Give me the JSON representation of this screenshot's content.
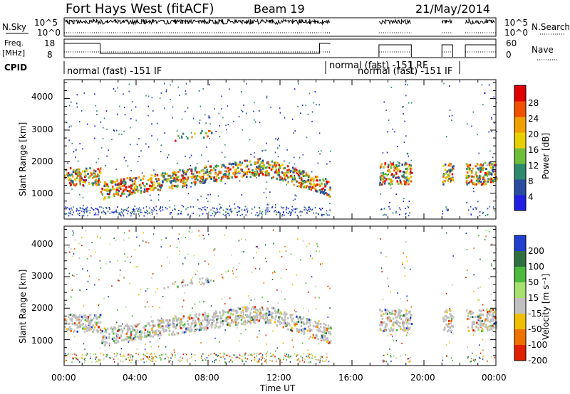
{
  "header": {
    "title": "Fort Hays West (fitACF)",
    "beam": "Beam 19",
    "date": "21/May/2014"
  },
  "panels": {
    "nsky": {
      "label": "N.Sky",
      "ticks": [
        "10^5",
        "10^0"
      ],
      "right_label": "N.Search",
      "right_ticks": [
        "10^5",
        "10^0"
      ]
    },
    "freq": {
      "label_top": "Freq.",
      "label_bottom": "[MHz]",
      "ticks": [
        "18",
        "8"
      ],
      "right_label": "Nave",
      "right_ticks": [
        "60",
        "0"
      ]
    },
    "cpid": {
      "label": "CPID",
      "entries": [
        "normal (fast) -151 IF",
        "normal (fast) -151 RF",
        "normal (fast) -151 IF"
      ]
    }
  },
  "power_panel": {
    "ylabel": "Slant Range [km]",
    "yticks": [
      "4000",
      "3000",
      "2000",
      "1000"
    ],
    "colorbar_label": "Power [dB]",
    "colorbar_ticks": [
      "28",
      "24",
      "20",
      "16",
      "12",
      "8",
      "4"
    ],
    "colors": [
      "#1f1fe6",
      "#2a4ca0",
      "#2e8a6c",
      "#6dbf3a",
      "#e8d000",
      "#f0a000",
      "#f05000",
      "#e00000"
    ]
  },
  "velocity_panel": {
    "ylabel": "Slant Range [km]",
    "yticks": [
      "4000",
      "3000",
      "2000",
      "1000"
    ],
    "colorbar_label": "Velocity [m s⁻¹]",
    "colorbar_ticks": [
      "200",
      "100",
      "50",
      "15",
      "-15",
      "-50",
      "-100",
      "-200"
    ],
    "colors": [
      "#1f3fd0",
      "#2f7040",
      "#4cba3c",
      "#a8e070",
      "#c0c0c0",
      "#f0c000",
      "#f07000",
      "#e02000"
    ]
  },
  "xaxis": {
    "label": "Time UT",
    "ticks": [
      "00:00",
      "04:00",
      "08:00",
      "12:00",
      "16:00",
      "20:00",
      "00:00"
    ]
  },
  "chart_data": {
    "type": "heatmap",
    "title": "Fort Hays West (fitACF)",
    "xlabel": "Time UT",
    "ylabel": "Slant Range [km]",
    "xlim_hours": [
      0,
      24
    ],
    "ylim_km": [
      180,
      4600
    ],
    "data_gaps_hours": [
      [
        14.8,
        17.5
      ],
      [
        19.3,
        21.0
      ],
      [
        21.6,
        22.3
      ]
    ],
    "power_colorbar": {
      "label": "Power [dB]",
      "ticks": [
        4,
        8,
        12,
        16,
        20,
        24,
        28
      ]
    },
    "velocity_colorbar": {
      "label": "Velocity [m s-1]",
      "ticks": [
        -200,
        -100,
        -50,
        -15,
        15,
        50,
        100,
        200
      ]
    }
  }
}
